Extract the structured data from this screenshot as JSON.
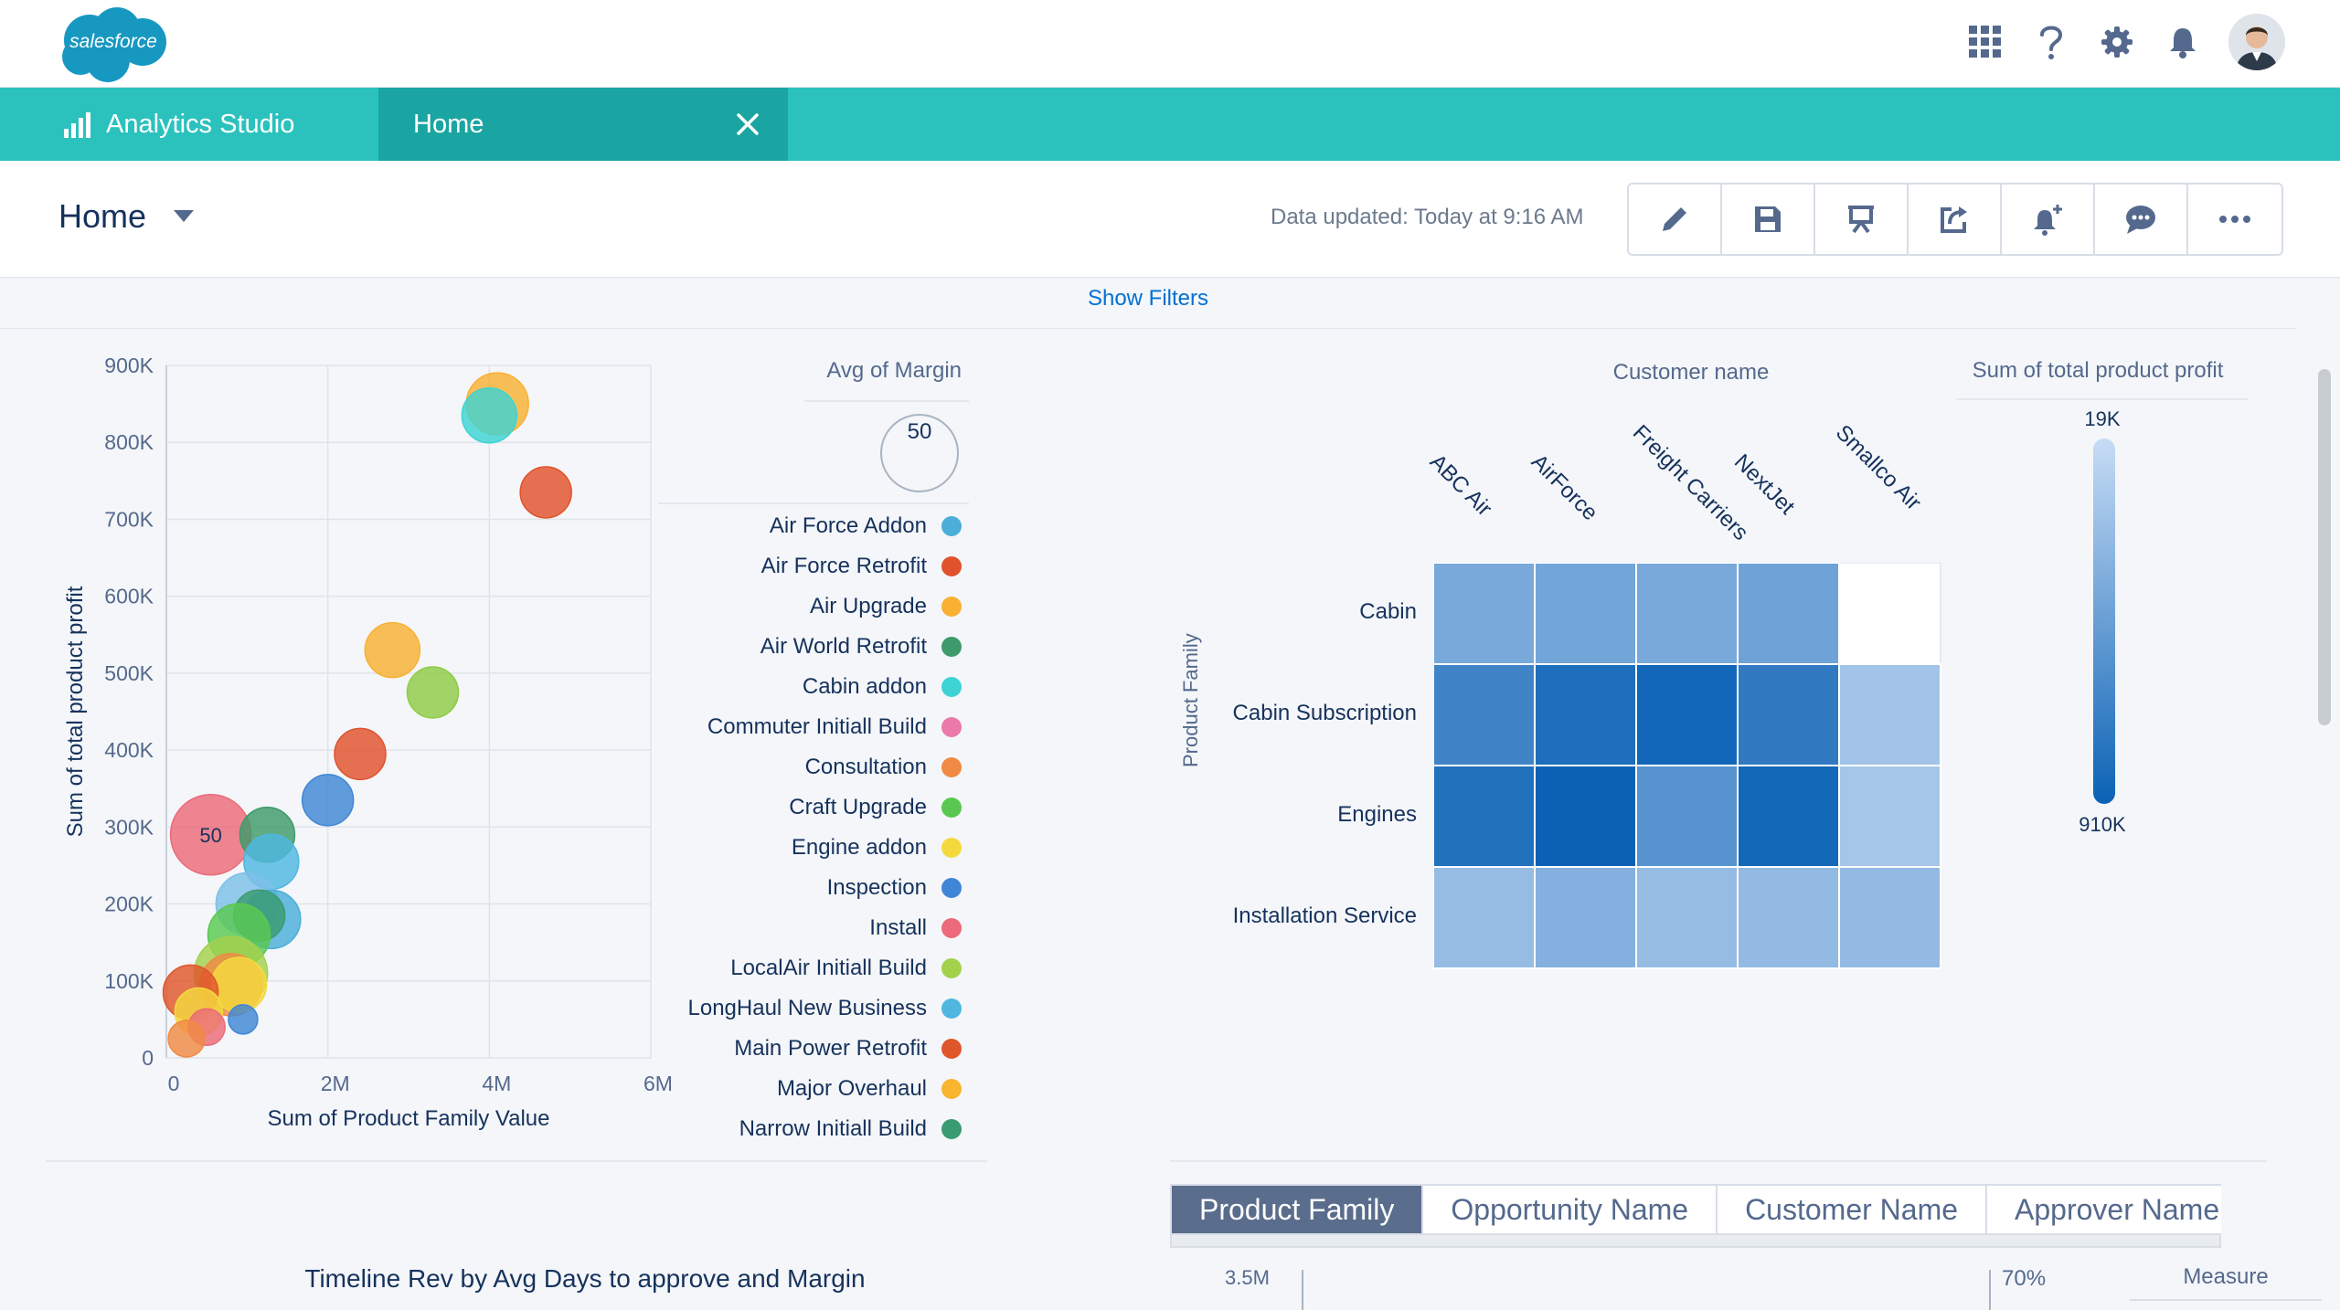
{
  "top": {
    "logo_text": "salesforce",
    "icons": [
      "app-launcher-icon",
      "help-icon",
      "gear-icon",
      "notification-bell-icon"
    ]
  },
  "appbar": {
    "app_name": "Analytics Studio",
    "tab_label": "Home"
  },
  "header": {
    "title": "Home",
    "updated": "Data updated: Today at 9:16 AM",
    "toolbar": [
      "edit-icon",
      "save-icon",
      "present-icon",
      "share-icon",
      "notify-icon",
      "comment-icon",
      "more-icon"
    ]
  },
  "filters": {
    "label": "Show Filters"
  },
  "colors": {
    "teal": "#2bc2be",
    "teal_dark": "#1aa5a2",
    "link": "#0070d2",
    "heatmap_low": "#c7dcf5",
    "heatmap_high": "#0b62b5"
  },
  "chart_data": [
    {
      "type": "scatter",
      "xlabel": "Sum of Product Family Value",
      "ylabel": "Sum of total product profit",
      "x_ticks": [
        "0",
        "2M",
        "4M",
        "6M"
      ],
      "y_ticks": [
        "0",
        "100K",
        "200K",
        "300K",
        "400K",
        "500K",
        "600K",
        "700K",
        "800K",
        "900K"
      ],
      "xlim": [
        0,
        6000000
      ],
      "ylim": [
        0,
        900000
      ],
      "grid": true,
      "size_legend": {
        "title": "Avg of Margin",
        "value": "50"
      },
      "legend": [
        {
          "name": "Air Force Addon",
          "color": "#4aaed9"
        },
        {
          "name": "Air Force Retrofit",
          "color": "#e0522c"
        },
        {
          "name": "Air Upgrade",
          "color": "#f8b133"
        },
        {
          "name": "Air World Retrofit",
          "color": "#3e9a6a"
        },
        {
          "name": "Cabin addon",
          "color": "#3ed3d3"
        },
        {
          "name": "Commuter Initiall Build",
          "color": "#ea7aa8"
        },
        {
          "name": "Consultation",
          "color": "#f08a44"
        },
        {
          "name": "Craft Upgrade",
          "color": "#5ac850"
        },
        {
          "name": "Engine addon",
          "color": "#f4d93e"
        },
        {
          "name": "Inspection",
          "color": "#3f86d6"
        },
        {
          "name": "Install",
          "color": "#ec6a79"
        },
        {
          "name": "LocalAir Initiall Build",
          "color": "#a3d14c"
        },
        {
          "name": "LongHaul New Business",
          "color": "#4fb7e0"
        },
        {
          "name": "Main Power Retrofit",
          "color": "#e0562b"
        },
        {
          "name": "Major Overhaul",
          "color": "#f9b52f"
        },
        {
          "name": "Narrow Initiall Build",
          "color": "#3a9b70"
        }
      ],
      "points": [
        {
          "x": 4100000,
          "y": 850000,
          "r": 34,
          "color": "#f8b133"
        },
        {
          "x": 4000000,
          "y": 835000,
          "r": 30,
          "color": "#3ed3d3"
        },
        {
          "x": 4700000,
          "y": 735000,
          "r": 28,
          "color": "#e0522c"
        },
        {
          "x": 2800000,
          "y": 530000,
          "r": 30,
          "color": "#f8b133"
        },
        {
          "x": 3300000,
          "y": 475000,
          "r": 28,
          "color": "#8fcb45"
        },
        {
          "x": 2400000,
          "y": 395000,
          "r": 28,
          "color": "#e0522c"
        },
        {
          "x": 2000000,
          "y": 335000,
          "r": 28,
          "color": "#3f86d6"
        },
        {
          "x": 550000,
          "y": 290000,
          "r": 44,
          "color": "#ec6a79",
          "label": "50"
        },
        {
          "x": 1250000,
          "y": 290000,
          "r": 30,
          "color": "#3e9a6a"
        },
        {
          "x": 1300000,
          "y": 255000,
          "r": 30,
          "color": "#4fb7e0"
        },
        {
          "x": 1000000,
          "y": 200000,
          "r": 34,
          "color": "#7cc0e8"
        },
        {
          "x": 1300000,
          "y": 180000,
          "r": 32,
          "color": "#4aaed9"
        },
        {
          "x": 1150000,
          "y": 185000,
          "r": 28,
          "color": "#3a9b70"
        },
        {
          "x": 900000,
          "y": 160000,
          "r": 34,
          "color": "#5ac850"
        },
        {
          "x": 800000,
          "y": 110000,
          "r": 40,
          "color": "#a3d14c"
        },
        {
          "x": 800000,
          "y": 95000,
          "r": 34,
          "color": "#f08a44"
        },
        {
          "x": 900000,
          "y": 95000,
          "r": 30,
          "color": "#f4d93e"
        },
        {
          "x": 300000,
          "y": 85000,
          "r": 30,
          "color": "#e0562b"
        },
        {
          "x": 400000,
          "y": 60000,
          "r": 26,
          "color": "#f4d93e"
        },
        {
          "x": 500000,
          "y": 40000,
          "r": 20,
          "color": "#ec6a79"
        },
        {
          "x": 950000,
          "y": 50000,
          "r": 16,
          "color": "#3f86d6"
        },
        {
          "x": 250000,
          "y": 25000,
          "r": 20,
          "color": "#f08a44"
        }
      ]
    },
    {
      "type": "heatmap",
      "x_title": "Customer name",
      "y_title": "Product Family",
      "columns": [
        "ABC Air",
        "AirForce",
        "Freight Carriers",
        "NextJet",
        "Smallco Air"
      ],
      "rows": [
        "Cabin",
        "Cabin Subscription",
        "Engines",
        "Installation Service"
      ],
      "color_scale": {
        "title": "Sum of total product profit",
        "min_label": "19K",
        "max_label": "910K"
      },
      "intensity": [
        [
          0.42,
          0.45,
          0.42,
          0.47,
          null
        ],
        [
          0.72,
          0.9,
          0.96,
          0.8,
          0.2
        ],
        [
          0.88,
          1.0,
          0.6,
          0.95,
          0.18
        ],
        [
          0.26,
          0.36,
          0.26,
          0.28,
          0.28
        ]
      ]
    }
  ],
  "bottom": {
    "tabs": [
      "Product Family",
      "Opportunity Name",
      "Customer Name",
      "Approver Name"
    ],
    "timeline_title": "Timeline Rev by Avg Days to approve and Margin",
    "y_tick": "3.5M",
    "pct_tick": "70%",
    "measure_label": "Measure"
  }
}
